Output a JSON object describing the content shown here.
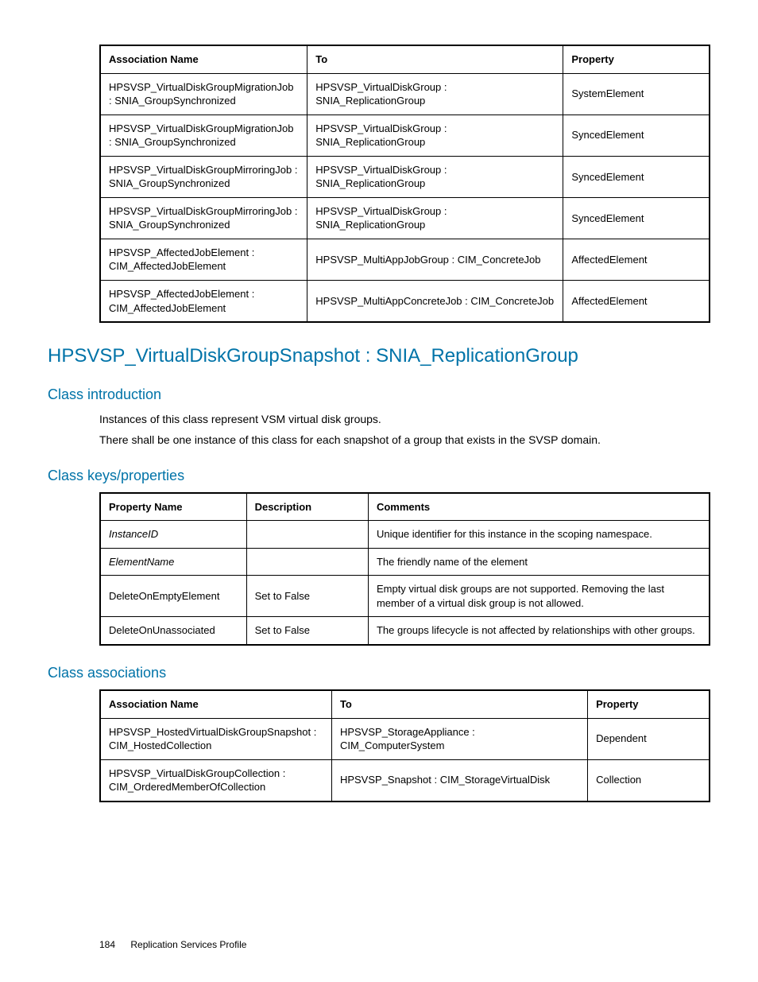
{
  "colors": {
    "heading": "#0073a8",
    "text": "#000000",
    "border": "#000000",
    "background": "#ffffff"
  },
  "typography": {
    "body_fontsize": 14,
    "table_fontsize": 13,
    "h1_fontsize": 24,
    "h2_fontsize": 18,
    "footer_fontsize": 12,
    "font_family": "Arial, Helvetica, sans-serif"
  },
  "table1": {
    "type": "table",
    "columns": [
      "Association Name",
      "To",
      "Property"
    ],
    "rows": [
      [
        "HPSVSP_VirtualDiskGroupMigrationJob : SNIA_GroupSynchronized",
        "HPSVSP_VirtualDiskGroup : SNIA_ReplicationGroup",
        "SystemElement"
      ],
      [
        "HPSVSP_VirtualDiskGroupMigrationJob : SNIA_GroupSynchronized",
        "HPSVSP_VirtualDiskGroup : SNIA_ReplicationGroup",
        "SyncedElement"
      ],
      [
        "HPSVSP_VirtualDiskGroupMirroringJob : SNIA_GroupSynchronized",
        "HPSVSP_VirtualDiskGroup : SNIA_ReplicationGroup",
        "SyncedElement"
      ],
      [
        "HPSVSP_VirtualDiskGroupMirroringJob : SNIA_GroupSynchronized",
        "HPSVSP_VirtualDiskGroup : SNIA_ReplicationGroup",
        "SyncedElement"
      ],
      [
        "HPSVSP_AffectedJobElement : CIM_AffectedJobElement",
        "HPSVSP_MultiAppJobGroup : CIM_ConcreteJob",
        "AffectedElement"
      ],
      [
        "HPSVSP_AffectedJobElement : CIM_AffectedJobElement",
        "HPSVSP_MultiAppConcreteJob : CIM_ConcreteJob",
        "AffectedElement"
      ]
    ]
  },
  "section_title": "HPSVSP_VirtualDiskGroupSnapshot : SNIA_ReplicationGroup",
  "sub1_title": "Class introduction",
  "sub1_para1": "Instances of this class represent VSM virtual disk groups.",
  "sub1_para2": "There shall be one instance of this class for each snapshot of a group that exists in the SVSP domain.",
  "sub2_title": "Class keys/properties",
  "table2": {
    "type": "table",
    "columns": [
      "Property Name",
      "Description",
      "Comments"
    ],
    "rows": [
      {
        "name": "InstanceID",
        "italic": true,
        "desc": "",
        "comments": "Unique identifier for this instance in the scoping namespace."
      },
      {
        "name": "ElementName",
        "italic": true,
        "desc": "",
        "comments": "The friendly name of the element"
      },
      {
        "name": "DeleteOnEmptyElement",
        "italic": false,
        "desc": "Set to False",
        "comments": "Empty virtual disk groups are not supported. Removing the last member of a virtual disk group is not allowed."
      },
      {
        "name": "DeleteOnUnassociated",
        "italic": false,
        "desc": "Set to False",
        "comments": "The groups lifecycle is not affected by relationships with other groups."
      }
    ]
  },
  "sub3_title": "Class associations",
  "table3": {
    "type": "table",
    "columns": [
      "Association Name",
      "To",
      "Property"
    ],
    "rows": [
      [
        "HPSVSP_HostedVirtualDiskGroupSnapshot : CIM_HostedCollection",
        "HPSVSP_StorageAppliance : CIM_ComputerSystem",
        "Dependent"
      ],
      [
        "HPSVSP_VirtualDiskGroupCollection : CIM_OrderedMemberOfCollection",
        "HPSVSP_Snapshot : CIM_StorageVirtualDisk",
        "Collection"
      ]
    ]
  },
  "footer": {
    "page_number": "184",
    "section_name": "Replication Services Profile"
  }
}
